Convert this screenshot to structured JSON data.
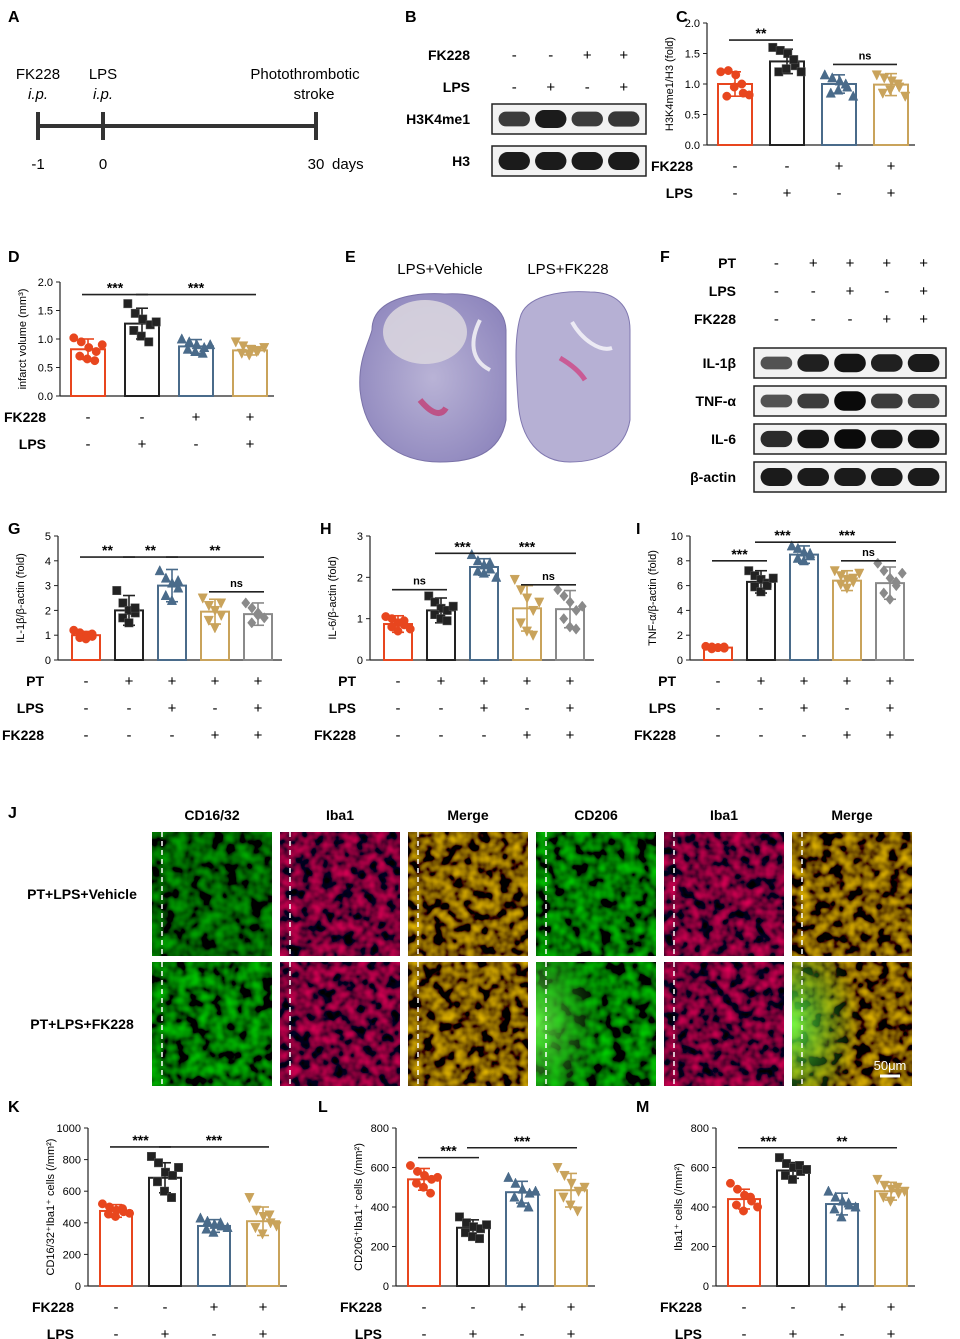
{
  "colors": {
    "red": "#e8461e",
    "black": "#222222",
    "blue": "#4a6b8a",
    "tan": "#c9a35b",
    "gray": "#8a8a8a"
  },
  "panel_labels": [
    "A",
    "B",
    "C",
    "D",
    "E",
    "F",
    "G",
    "H",
    "I",
    "J",
    "K",
    "L",
    "M"
  ],
  "panelA": {
    "events": [
      {
        "top": "FK228",
        "sub": "i.p.",
        "day": "-1"
      },
      {
        "top": "LPS",
        "sub": "i.p.",
        "day": "0"
      },
      {
        "top": "Photothrombotic",
        "sub": "stroke",
        "day": "30"
      }
    ],
    "unit": "days"
  },
  "panelB": {
    "rows": [
      {
        "label": "FK228",
        "signs": [
          "-",
          "-",
          "+",
          "+"
        ]
      },
      {
        "label": "LPS",
        "signs": [
          "-",
          "+",
          "-",
          "+"
        ]
      }
    ],
    "blots": [
      {
        "label": "H3K4me1",
        "intensity": [
          0.55,
          0.85,
          0.55,
          0.6
        ]
      },
      {
        "label": "H3",
        "intensity": [
          0.85,
          0.85,
          0.85,
          0.85
        ]
      }
    ]
  },
  "panelE": {
    "labels": [
      "LPS+Vehicle",
      "LPS+FK228"
    ]
  },
  "panelF": {
    "rows": [
      {
        "label": "PT",
        "signs": [
          "-",
          "+",
          "+",
          "+",
          "+"
        ]
      },
      {
        "label": "LPS",
        "signs": [
          "-",
          "-",
          "+",
          "-",
          "+"
        ]
      },
      {
        "label": "FK228",
        "signs": [
          "-",
          "-",
          "-",
          "+",
          "+"
        ]
      }
    ],
    "blots": [
      {
        "label": "IL-1β",
        "intensity": [
          0.35,
          0.8,
          0.9,
          0.8,
          0.85
        ]
      },
      {
        "label": "TNF-α",
        "intensity": [
          0.35,
          0.55,
          1.0,
          0.55,
          0.5
        ]
      },
      {
        "label": "IL-6",
        "intensity": [
          0.7,
          0.9,
          1.0,
          0.9,
          0.9
        ]
      },
      {
        "label": "β-actin",
        "intensity": [
          0.85,
          0.85,
          0.85,
          0.85,
          0.85
        ]
      }
    ]
  },
  "panelJ": {
    "columns": [
      "CD16/32",
      "Iba1",
      "Merge",
      "CD206",
      "Iba1",
      "Merge"
    ],
    "rows": [
      "PT+LPS+Vehicle",
      "PT+LPS+FK228"
    ],
    "scalebar": "50μm"
  },
  "chart_data": [
    {
      "id": "C",
      "type": "bar",
      "ylabel": "H3K4me1/H3 (fold)",
      "ylim": [
        0,
        2.0
      ],
      "yticks": [
        "0.0",
        "0.5",
        "1.0",
        "1.5",
        "2.0"
      ],
      "values": [
        1.0,
        1.37,
        1.0,
        0.99
      ],
      "errors": [
        0.2,
        0.2,
        0.15,
        0.18
      ],
      "points": [
        [
          1.2,
          1.22,
          1.15,
          0.85,
          0.8,
          0.95,
          1.0,
          0.82
        ],
        [
          1.6,
          1.55,
          1.5,
          1.3,
          1.2,
          1.25,
          1.4,
          1.2
        ],
        [
          1.15,
          1.1,
          1.05,
          0.95,
          0.85,
          0.9,
          1.0,
          0.8
        ],
        [
          1.15,
          1.1,
          1.05,
          0.95,
          0.85,
          0.9,
          1.0,
          0.8
        ]
      ],
      "colors": [
        "red",
        "black",
        "blue",
        "tan"
      ],
      "markers": [
        "circle",
        "square",
        "triangle",
        "invtri"
      ],
      "signs": [
        {
          "label": "FK228",
          "signs": [
            "-",
            "-",
            "+",
            "+"
          ]
        },
        {
          "label": "LPS",
          "signs": [
            "-",
            "+",
            "-",
            "+"
          ]
        }
      ],
      "sig": [
        {
          "from": 0,
          "to": 1,
          "text": "**",
          "level": 1.72
        },
        {
          "from": 2,
          "to": 3,
          "text": "ns",
          "level": 1.32
        }
      ]
    },
    {
      "id": "D",
      "type": "bar",
      "ylabel": "infarct volume (mm³)",
      "ylim": [
        0,
        2.0
      ],
      "yticks": [
        "0.0",
        "0.5",
        "1.0",
        "1.5",
        "2.0"
      ],
      "values": [
        0.82,
        1.27,
        0.87,
        0.8
      ],
      "errors": [
        0.18,
        0.27,
        0.12,
        0.08
      ],
      "points": [
        [
          1.02,
          0.95,
          0.85,
          0.78,
          0.7,
          0.65,
          0.62,
          0.9
        ],
        [
          1.62,
          1.45,
          1.35,
          1.25,
          1.15,
          1.05,
          0.95,
          1.3
        ],
        [
          1.0,
          0.95,
          0.9,
          0.85,
          0.82,
          0.78,
          0.75,
          0.9
        ],
        [
          0.95,
          0.88,
          0.82,
          0.8,
          0.75,
          0.72,
          0.78,
          0.85
        ]
      ],
      "colors": [
        "red",
        "black",
        "blue",
        "tan"
      ],
      "markers": [
        "circle",
        "square",
        "triangle",
        "invtri"
      ],
      "signs": [
        {
          "label": "FK228",
          "signs": [
            "-",
            "-",
            "+",
            "+"
          ]
        },
        {
          "label": "LPS",
          "signs": [
            "-",
            "+",
            "-",
            "+"
          ]
        }
      ],
      "sig": [
        {
          "from": 0,
          "to": 1,
          "text": "***",
          "level": 1.78
        },
        {
          "from": 1,
          "to": 3,
          "text": "***",
          "level": 1.78
        }
      ]
    },
    {
      "id": "G",
      "type": "bar",
      "ylabel": "IL-1β/β-actin (fold)",
      "ylim": [
        0,
        5
      ],
      "yticks": [
        "0",
        "1",
        "2",
        "3",
        "4",
        "5"
      ],
      "values": [
        1.0,
        2.0,
        3.0,
        1.95,
        1.85
      ],
      "errors": [
        0.15,
        0.6,
        0.65,
        0.5,
        0.45
      ],
      "points": [
        [
          1.2,
          1.1,
          1.0,
          0.95,
          0.9,
          0.85,
          1.05
        ],
        [
          2.8,
          2.3,
          2.0,
          1.9,
          1.7,
          1.5,
          2.1
        ],
        [
          3.6,
          3.3,
          3.1,
          2.9,
          2.6,
          2.4,
          3.2
        ],
        [
          2.5,
          2.2,
          2.0,
          1.8,
          1.6,
          1.3,
          2.3
        ],
        [
          2.3,
          2.1,
          1.9,
          1.7,
          1.5,
          1.8
        ]
      ],
      "colors": [
        "red",
        "black",
        "blue",
        "tan",
        "gray"
      ],
      "markers": [
        "circle",
        "square",
        "triangle",
        "invtri",
        "diamond"
      ],
      "signs": [
        {
          "label": "PT",
          "signs": [
            "-",
            "+",
            "+",
            "+",
            "+"
          ]
        },
        {
          "label": "LPS",
          "signs": [
            "-",
            "-",
            "+",
            "-",
            "+"
          ]
        },
        {
          "label": "FK228",
          "signs": [
            "-",
            "-",
            "-",
            "+",
            "+"
          ]
        }
      ],
      "sig": [
        {
          "from": 0,
          "to": 1,
          "text": "**",
          "level": 4.15
        },
        {
          "from": 1,
          "to": 2,
          "text": "**",
          "level": 4.15
        },
        {
          "from": 2,
          "to": 4,
          "text": "**",
          "level": 4.15
        },
        {
          "from": 3,
          "to": 4,
          "text": "ns",
          "level": 2.75
        }
      ]
    },
    {
      "id": "H",
      "type": "bar",
      "ylabel": "IL-6/β-actin (fold)",
      "ylim": [
        0,
        3
      ],
      "yticks": [
        "0",
        "1",
        "2",
        "3"
      ],
      "values": [
        0.87,
        1.2,
        2.25,
        1.25,
        1.23
      ],
      "errors": [
        0.2,
        0.3,
        0.2,
        0.55,
        0.45
      ],
      "points": [
        [
          1.05,
          1.0,
          0.9,
          0.85,
          0.8,
          0.7,
          0.95,
          0.75
        ],
        [
          1.55,
          1.4,
          1.25,
          1.2,
          1.1,
          1.0,
          0.95,
          1.3
        ],
        [
          2.55,
          2.4,
          2.3,
          2.2,
          2.15,
          2.1,
          2.35,
          2.0
        ],
        [
          1.95,
          1.7,
          1.5,
          1.2,
          0.9,
          0.7,
          0.6,
          1.4
        ],
        [
          1.7,
          1.55,
          1.4,
          1.2,
          1.0,
          0.8,
          0.75,
          1.3
        ]
      ],
      "colors": [
        "red",
        "black",
        "blue",
        "tan",
        "gray"
      ],
      "markers": [
        "circle",
        "square",
        "triangle",
        "invtri",
        "diamond"
      ],
      "signs": [
        {
          "label": "PT",
          "signs": [
            "-",
            "+",
            "+",
            "+",
            "+"
          ]
        },
        {
          "label": "LPS",
          "signs": [
            "-",
            "-",
            "+",
            "-",
            "+"
          ]
        },
        {
          "label": "FK228",
          "signs": [
            "-",
            "-",
            "-",
            "+",
            "+"
          ]
        }
      ],
      "sig": [
        {
          "from": 0,
          "to": 1,
          "text": "ns",
          "level": 1.7
        },
        {
          "from": 1,
          "to": 2,
          "text": "***",
          "level": 2.58
        },
        {
          "from": 2,
          "to": 4,
          "text": "***",
          "level": 2.58
        },
        {
          "from": 3,
          "to": 4,
          "text": "ns",
          "level": 1.82
        }
      ]
    },
    {
      "id": "I",
      "type": "bar",
      "ylabel": "TNF-α/β-actin (fold)",
      "ylim": [
        0,
        10
      ],
      "yticks": [
        "0",
        "2",
        "4",
        "6",
        "8",
        "10"
      ],
      "values": [
        1.0,
        6.3,
        8.5,
        6.4,
        6.2
      ],
      "errors": [
        0.1,
        0.9,
        0.7,
        0.8,
        1.3
      ],
      "points": [
        [
          1.1,
          1.05,
          1.0,
          0.95,
          0.9,
          1.0,
          1.05
        ],
        [
          7.2,
          6.8,
          6.5,
          6.2,
          5.9,
          5.5,
          6.0,
          6.6
        ],
        [
          9.2,
          9.0,
          8.7,
          8.4,
          8.2,
          8.0,
          8.6
        ],
        [
          7.2,
          6.8,
          6.5,
          6.3,
          6.1,
          5.8,
          6.6,
          7.0
        ],
        [
          7.8,
          7.2,
          6.6,
          6.0,
          5.4,
          4.9,
          6.3,
          7.0
        ]
      ],
      "colors": [
        "red",
        "black",
        "blue",
        "tan",
        "gray"
      ],
      "markers": [
        "circle",
        "square",
        "triangle",
        "invtri",
        "diamond"
      ],
      "signs": [
        {
          "label": "PT",
          "signs": [
            "-",
            "+",
            "+",
            "+",
            "+"
          ]
        },
        {
          "label": "LPS",
          "signs": [
            "-",
            "-",
            "+",
            "-",
            "+"
          ]
        },
        {
          "label": "FK228",
          "signs": [
            "-",
            "-",
            "-",
            "+",
            "+"
          ]
        }
      ],
      "sig": [
        {
          "from": 0,
          "to": 1,
          "text": "***",
          "level": 8.0
        },
        {
          "from": 1,
          "to": 2,
          "text": "***",
          "level": 9.5
        },
        {
          "from": 2,
          "to": 4,
          "text": "***",
          "level": 9.5
        },
        {
          "from": 3,
          "to": 4,
          "text": "ns",
          "level": 8.0
        }
      ]
    },
    {
      "id": "K",
      "type": "bar",
      "ylabel": "CD16/32⁺Iba1⁺ cells (/mm²)",
      "ylim": [
        0,
        1000
      ],
      "yticks": [
        "0",
        "200",
        "400",
        "600",
        "800",
        "1000"
      ],
      "values": [
        475,
        685,
        380,
        410
      ],
      "errors": [
        40,
        95,
        40,
        90
      ],
      "points": [
        [
          520,
          500,
          480,
          470,
          455,
          440,
          490,
          460
        ],
        [
          820,
          780,
          720,
          700,
          660,
          600,
          560,
          750
        ],
        [
          430,
          410,
          390,
          380,
          360,
          340,
          400,
          370
        ],
        [
          560,
          480,
          440,
          400,
          370,
          330,
          450,
          380
        ]
      ],
      "colors": [
        "red",
        "black",
        "blue",
        "tan"
      ],
      "markers": [
        "circle",
        "square",
        "triangle",
        "invtri"
      ],
      "signs": [
        {
          "label": "FK228",
          "signs": [
            "-",
            "-",
            "+",
            "+"
          ]
        },
        {
          "label": "LPS",
          "signs": [
            "-",
            "+",
            "-",
            "+"
          ]
        }
      ],
      "sig": [
        {
          "from": 0,
          "to": 1,
          "text": "***",
          "level": 880
        },
        {
          "from": 1,
          "to": 3,
          "text": "***",
          "level": 880
        }
      ]
    },
    {
      "id": "L",
      "type": "bar",
      "ylabel": "CD206⁺Iba1⁺ cells (/mm²)",
      "ylim": [
        0,
        800
      ],
      "yticks": [
        "0",
        "200",
        "400",
        "600",
        "800"
      ],
      "values": [
        540,
        295,
        475,
        485
      ],
      "errors": [
        55,
        40,
        55,
        85
      ],
      "points": [
        [
          610,
          580,
          560,
          540,
          520,
          500,
          470,
          550
        ],
        [
          350,
          320,
          300,
          290,
          270,
          250,
          240,
          310
        ],
        [
          550,
          520,
          490,
          470,
          450,
          420,
          400,
          480
        ],
        [
          600,
          560,
          520,
          480,
          450,
          410,
          380,
          500
        ]
      ],
      "colors": [
        "red",
        "black",
        "blue",
        "tan"
      ],
      "markers": [
        "circle",
        "square",
        "triangle",
        "invtri"
      ],
      "signs": [
        {
          "label": "FK228",
          "signs": [
            "-",
            "-",
            "+",
            "+"
          ]
        },
        {
          "label": "LPS",
          "signs": [
            "-",
            "+",
            "-",
            "+"
          ]
        }
      ],
      "sig": [
        {
          "from": 0,
          "to": 1,
          "text": "***",
          "level": 650
        },
        {
          "from": 1,
          "to": 3,
          "text": "***",
          "level": 700
        }
      ]
    },
    {
      "id": "M",
      "type": "bar",
      "ylabel": "Iba1⁺ cells (/mm²)",
      "ylim": [
        0,
        800
      ],
      "yticks": [
        "0",
        "200",
        "400",
        "600",
        "800"
      ],
      "values": [
        440,
        585,
        415,
        480
      ],
      "errors": [
        50,
        40,
        55,
        45
      ],
      "points": [
        [
          520,
          490,
          460,
          430,
          410,
          380,
          450,
          400
        ],
        [
          650,
          620,
          600,
          580,
          560,
          540,
          610,
          590
        ],
        [
          480,
          450,
          430,
          410,
          390,
          350,
          420,
          400
        ],
        [
          540,
          510,
          490,
          470,
          450,
          430,
          500,
          480
        ]
      ],
      "colors": [
        "red",
        "black",
        "blue",
        "tan"
      ],
      "markers": [
        "circle",
        "square",
        "triangle",
        "invtri"
      ],
      "signs": [
        {
          "label": "FK228",
          "signs": [
            "-",
            "-",
            "+",
            "+"
          ]
        },
        {
          "label": "LPS",
          "signs": [
            "-",
            "+",
            "-",
            "+"
          ]
        }
      ],
      "sig": [
        {
          "from": 0,
          "to": 1,
          "text": "***",
          "level": 700
        },
        {
          "from": 1,
          "to": 3,
          "text": "**",
          "level": 700
        }
      ]
    }
  ]
}
